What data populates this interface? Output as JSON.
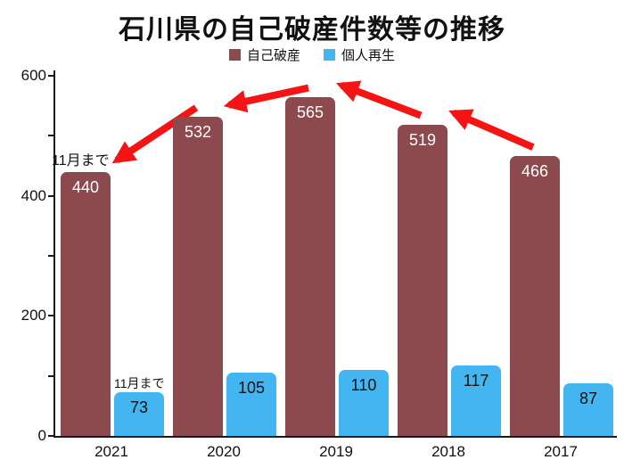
{
  "chart_data": {
    "type": "bar",
    "title": "石川県の自己破産件数等の推移",
    "categories": [
      "2021",
      "2020",
      "2019",
      "2018",
      "2017"
    ],
    "series": [
      {
        "name": "自己破産",
        "color": "#8c4a4e",
        "label_color": "#ffffff",
        "values": [
          440,
          532,
          565,
          519,
          466
        ]
      },
      {
        "name": "個人再生",
        "color": "#43b5f0",
        "label_color": "#111111",
        "values": [
          73,
          105,
          110,
          117,
          87
        ]
      }
    ],
    "xlabel": "",
    "ylabel": "",
    "ylim": [
      0,
      600
    ],
    "yticks": [
      0,
      200,
      400,
      600
    ],
    "grid": false,
    "legend_position": "top",
    "annotations": [
      {
        "text": "11月まで",
        "series": 0,
        "category": "2021"
      },
      {
        "text": "11月まで",
        "series": 1,
        "category": "2021"
      }
    ],
    "arrows": {
      "color": "#f51414",
      "description": "red trend arrows pointing right-to-left along 自己破産 bar tops"
    }
  }
}
